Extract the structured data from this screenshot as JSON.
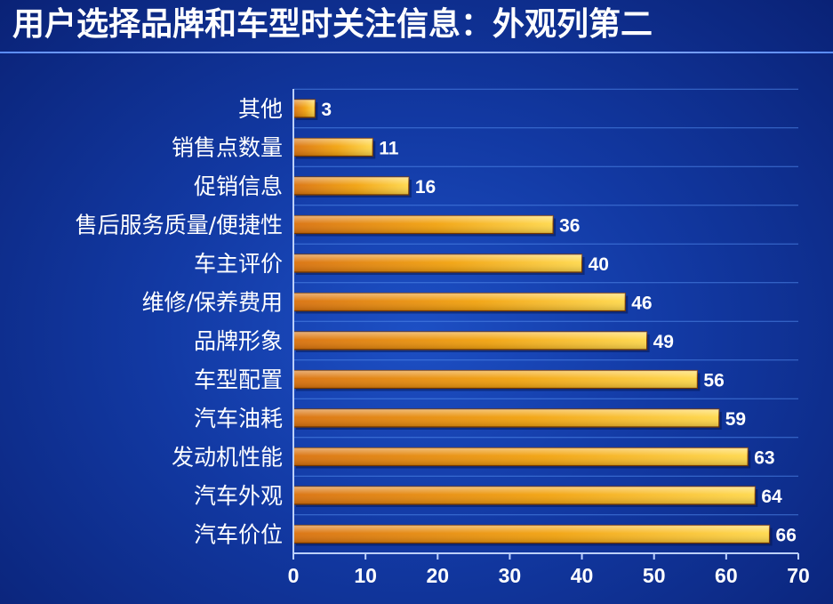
{
  "title": "用户选择品牌和车型时关注信息：外观列第二",
  "colors": {
    "bar_light": "#ffe36a",
    "bar_mid": "#f2a20c",
    "bar_dark": "#d9700b",
    "bar_edge": "#7a3a00",
    "grid": "#4f86e8",
    "axis": "#bcd0ff"
  },
  "chart_data": {
    "type": "bar",
    "orientation": "horizontal",
    "title": "用户选择品牌和车型时关注信息：外观列第二",
    "categories": [
      "其他",
      "销售点数量",
      "促销信息",
      "售后服务质量/便捷性",
      "车主评价",
      "维修/保养费用",
      "品牌形象",
      "车型配置",
      "汽车油耗",
      "发动机性能",
      "汽车外观",
      "汽车价位"
    ],
    "values": [
      3,
      11,
      16,
      36,
      40,
      46,
      49,
      56,
      59,
      63,
      64,
      66
    ],
    "xlim": [
      0,
      70
    ],
    "xticks": [
      0,
      10,
      20,
      30,
      40,
      50,
      60,
      70
    ],
    "xlabel": "",
    "ylabel": "",
    "grid": true,
    "legend": "none"
  }
}
